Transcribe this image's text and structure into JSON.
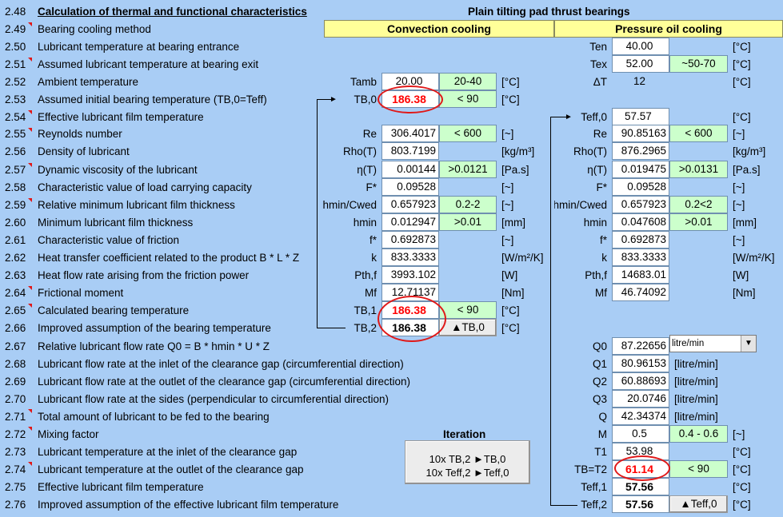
{
  "header": {
    "number": "2.48",
    "title": "Calculation of thermal and functional characteristics",
    "subtitle": "Plain tilting pad thrust bearings"
  },
  "columns": {
    "convection": "Convection cooling",
    "pressure": "Pressure oil cooling"
  },
  "rows": [
    {
      "n": "2.49",
      "d": "Bearing cooling method"
    },
    {
      "n": "2.50",
      "d": "Lubricant temperature at bearing entrance"
    },
    {
      "n": "2.51",
      "d": "Assumed lubricant temperature at bearing exit"
    },
    {
      "n": "2.52",
      "d": "Ambient temperature"
    },
    {
      "n": "2.53",
      "d": "Assumed initial bearing temperature (TB,0=Teff)"
    },
    {
      "n": "2.54",
      "d": "Effective lubricant film temperature"
    },
    {
      "n": "2.55",
      "d": "Reynolds number"
    },
    {
      "n": "2.56",
      "d": "Density of lubricant"
    },
    {
      "n": "2.57",
      "d": "Dynamic viscosity of the lubricant"
    },
    {
      "n": "2.58",
      "d": "Characteristic value of load carrying capacity"
    },
    {
      "n": "2.59",
      "d": "Relative minimum lubricant film thickness"
    },
    {
      "n": "2.60",
      "d": "Minimum lubricant film thickness"
    },
    {
      "n": "2.61",
      "d": "Characteristic value of friction"
    },
    {
      "n": "2.62",
      "d": "Heat transfer coefficient related to the product B * L * Z"
    },
    {
      "n": "2.63",
      "d": "Heat flow rate arising from the friction power"
    },
    {
      "n": "2.64",
      "d": "Frictional moment"
    },
    {
      "n": "2.65",
      "d": "Calculated bearing temperature"
    },
    {
      "n": "2.66",
      "d": "Improved assumption of the bearing temperature"
    },
    {
      "n": "2.67",
      "d": "Relative lubricant flow rate Q0 = B * hmin * U * Z"
    },
    {
      "n": "2.68",
      "d": "Lubricant flow rate at the inlet of the clearance gap (circumferential direction)"
    },
    {
      "n": "2.69",
      "d": "Lubricant flow rate at the outlet of the clearance gap (circumferential direction)"
    },
    {
      "n": "2.70",
      "d": "Lubricant flow rate at the sides (perpendicular to circumferential direction)"
    },
    {
      "n": "2.71",
      "d": "Total amount of lubricant to be fed to the bearing"
    },
    {
      "n": "2.72",
      "d": "Mixing factor"
    },
    {
      "n": "2.73",
      "d": "Lubricant temperature at the inlet of the clearance gap"
    },
    {
      "n": "2.74",
      "d": "Lubricant temperature at the outlet of the clearance gap"
    },
    {
      "n": "2.75",
      "d": "Effective lubricant film temperature"
    },
    {
      "n": "2.76",
      "d": "Improved assumption of the effective lubricant film temperature"
    }
  ],
  "conv": {
    "tamb": {
      "label": "Tamb",
      "value": "20.00",
      "range": "20-40",
      "unit": "[°C]"
    },
    "tb0": {
      "label": "TB,0",
      "value": "186.38",
      "range": "< 90",
      "unit": "[°C]"
    },
    "re": {
      "label": "Re",
      "value": "306.4017",
      "range": "< 600",
      "unit": "[~]"
    },
    "rho": {
      "label": "Rho(T)",
      "value": "803.7199",
      "unit": "[kg/m³]"
    },
    "eta": {
      "label": "η(T)",
      "value": "0.00144",
      "range": ">0.0121",
      "unit": "[Pa.s]"
    },
    "f": {
      "label": "F*",
      "value": "0.09528",
      "unit": "[~]"
    },
    "hmincwed": {
      "label": "hmin/Cwed",
      "value": "0.657923",
      "range": "0.2-2",
      "unit": "[~]"
    },
    "hmin": {
      "label": "hmin",
      "value": "0.012947",
      "range": ">0.01",
      "unit": "[mm]"
    },
    "fstar": {
      "label": "f*",
      "value": "0.692873",
      "unit": "[~]"
    },
    "k": {
      "label": "k",
      "value": "833.3333",
      "unit": "[W/m²/K]"
    },
    "pth": {
      "label": "Pth,f",
      "value": "3993.102",
      "unit": "[W]"
    },
    "mf": {
      "label": "Mf",
      "value": "12.71137",
      "unit": "[Nm]"
    },
    "tb1": {
      "label": "TB,1",
      "value": "186.38",
      "range": "< 90",
      "unit": "[°C]"
    },
    "tb2": {
      "label": "TB,2",
      "value": "186.38",
      "button": "▲TB,0",
      "unit": "[°C]"
    }
  },
  "press": {
    "ten": {
      "label": "Ten",
      "value": "40.00",
      "unit": "[°C]"
    },
    "tex": {
      "label": "Tex",
      "value": "52.00",
      "range": "~50-70",
      "unit": "[°C]"
    },
    "dt": {
      "label": "ΔT",
      "value": "12",
      "unit": "[°C]"
    },
    "teff0": {
      "label": "Teff,0",
      "value": "57.57",
      "unit": "[°C]"
    },
    "re": {
      "label": "Re",
      "value": "90.85163",
      "range": "< 600",
      "unit": "[~]"
    },
    "rho": {
      "label": "Rho(T)",
      "value": "876.2965",
      "unit": "[kg/m³]"
    },
    "eta": {
      "label": "η(T)",
      "value": "0.019475",
      "range": ">0.0131",
      "unit": "[Pa.s]"
    },
    "f": {
      "label": "F*",
      "value": "0.09528",
      "unit": "[~]"
    },
    "hmincwed": {
      "label": "hmin/Cwed",
      "value": "0.657923",
      "range": "0.2<2",
      "unit": "[~]"
    },
    "hmin": {
      "label": "hmin",
      "value": "0.047608",
      "range": ">0.01",
      "unit": "[mm]"
    },
    "fstar": {
      "label": "f*",
      "value": "0.692873",
      "unit": "[~]"
    },
    "k": {
      "label": "k",
      "value": "833.3333",
      "unit": "[W/m²/K]"
    },
    "pth": {
      "label": "Pth,f",
      "value": "14683.01",
      "unit": "[W]"
    },
    "mf": {
      "label": "Mf",
      "value": "46.74092",
      "unit": "[Nm]"
    },
    "q0": {
      "label": "Q0",
      "value": "87.22656",
      "select": "litre/min"
    },
    "q1": {
      "label": "Q1",
      "value": "80.96153",
      "unit": "[litre/min]"
    },
    "q2": {
      "label": "Q2",
      "value": "60.88693",
      "unit": "[litre/min]"
    },
    "q3": {
      "label": "Q3",
      "value": "20.0746",
      "unit": "[litre/min]"
    },
    "q": {
      "label": "Q",
      "value": "42.34374",
      "unit": "[litre/min]"
    },
    "m": {
      "label": "M",
      "value": "0.5",
      "range": "0.4 - 0.6",
      "unit": "[~]"
    },
    "t1": {
      "label": "T1",
      "value": "53.98",
      "unit": "[°C]"
    },
    "t2": {
      "label": "TB=T2",
      "value": "61.14",
      "range": "< 90",
      "unit": "[°C]"
    },
    "teff1": {
      "label": "Teff,1",
      "value": "57.56",
      "unit": "[°C]"
    },
    "teff2": {
      "label": "Teff,2",
      "value": "57.56",
      "button": "▲Teff,0",
      "unit": "[°C]"
    }
  },
  "iteration": {
    "title": "Iteration",
    "line1": "10x TB,2 ►TB,0",
    "line2": "10x Teff,2 ►Teff,0"
  }
}
